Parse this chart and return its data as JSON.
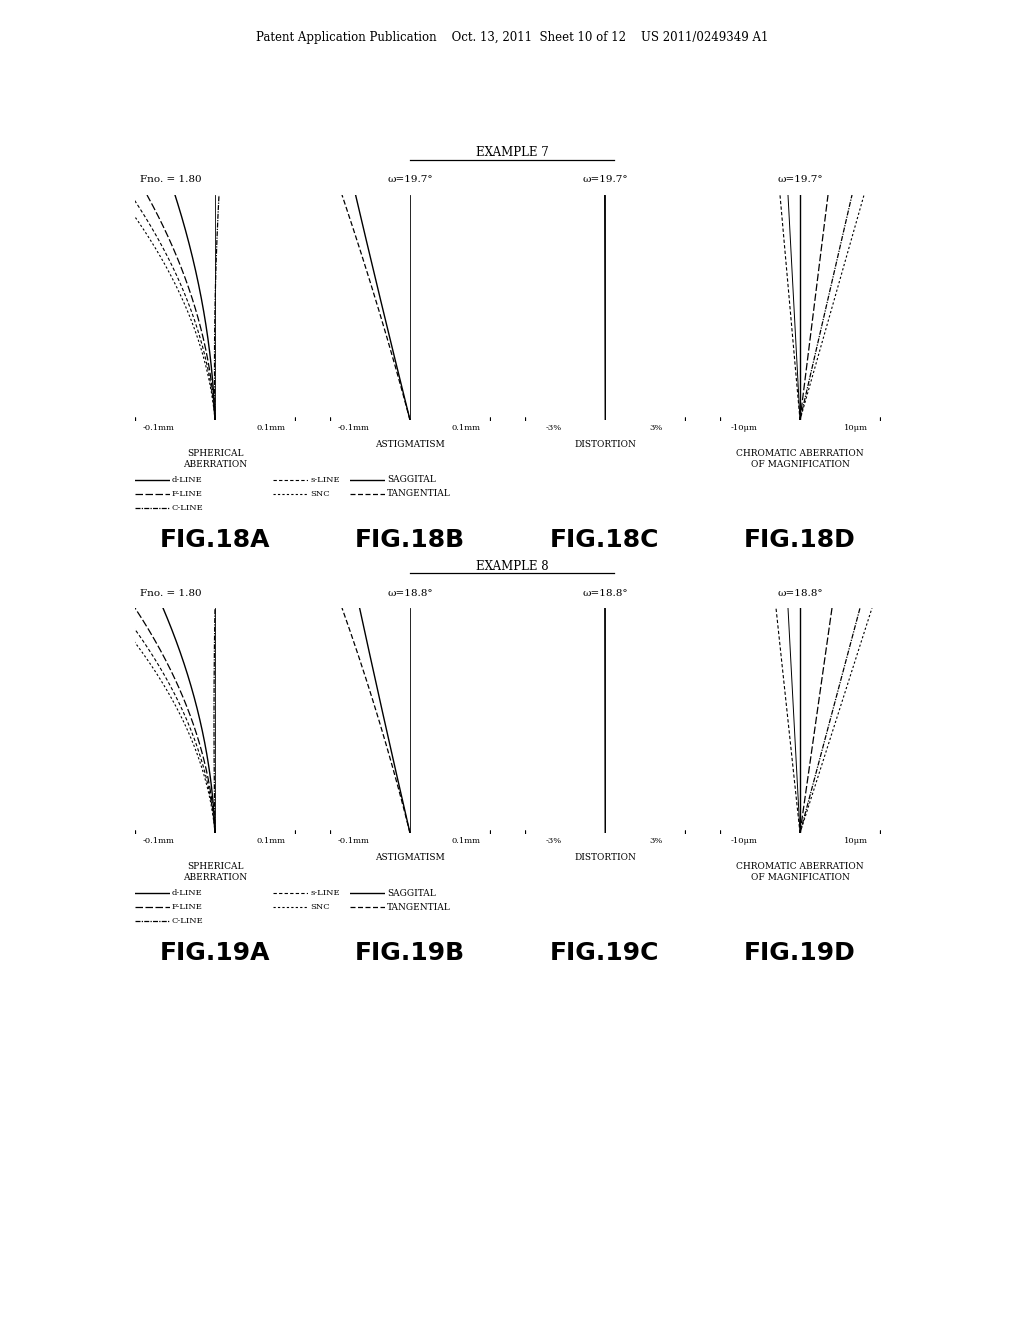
{
  "header_text": "Patent Application Publication    Oct. 13, 2011  Sheet 10 of 12    US 2011/0249349 A1",
  "example7_title": "EXAMPLE 7",
  "example8_title": "EXAMPLE 8",
  "fig_labels_row1": [
    "FIG.18A",
    "FIG.18B",
    "FIG.18C",
    "FIG.18D"
  ],
  "fig_labels_row2": [
    "FIG.19A",
    "FIG.19B",
    "FIG.19C",
    "FIG.19D"
  ],
  "fno1": "Fno. = 1.80",
  "fno2": "Fno. = 1.80",
  "omega1a": "ω=19.7°",
  "omega1b": "ω=19.7°",
  "omega1c": "ω=19.7°",
  "omega2a": "ω=18.8°",
  "omega2b": "ω=18.8°",
  "omega2c": "ω=18.8°",
  "background_color": "#ffffff"
}
